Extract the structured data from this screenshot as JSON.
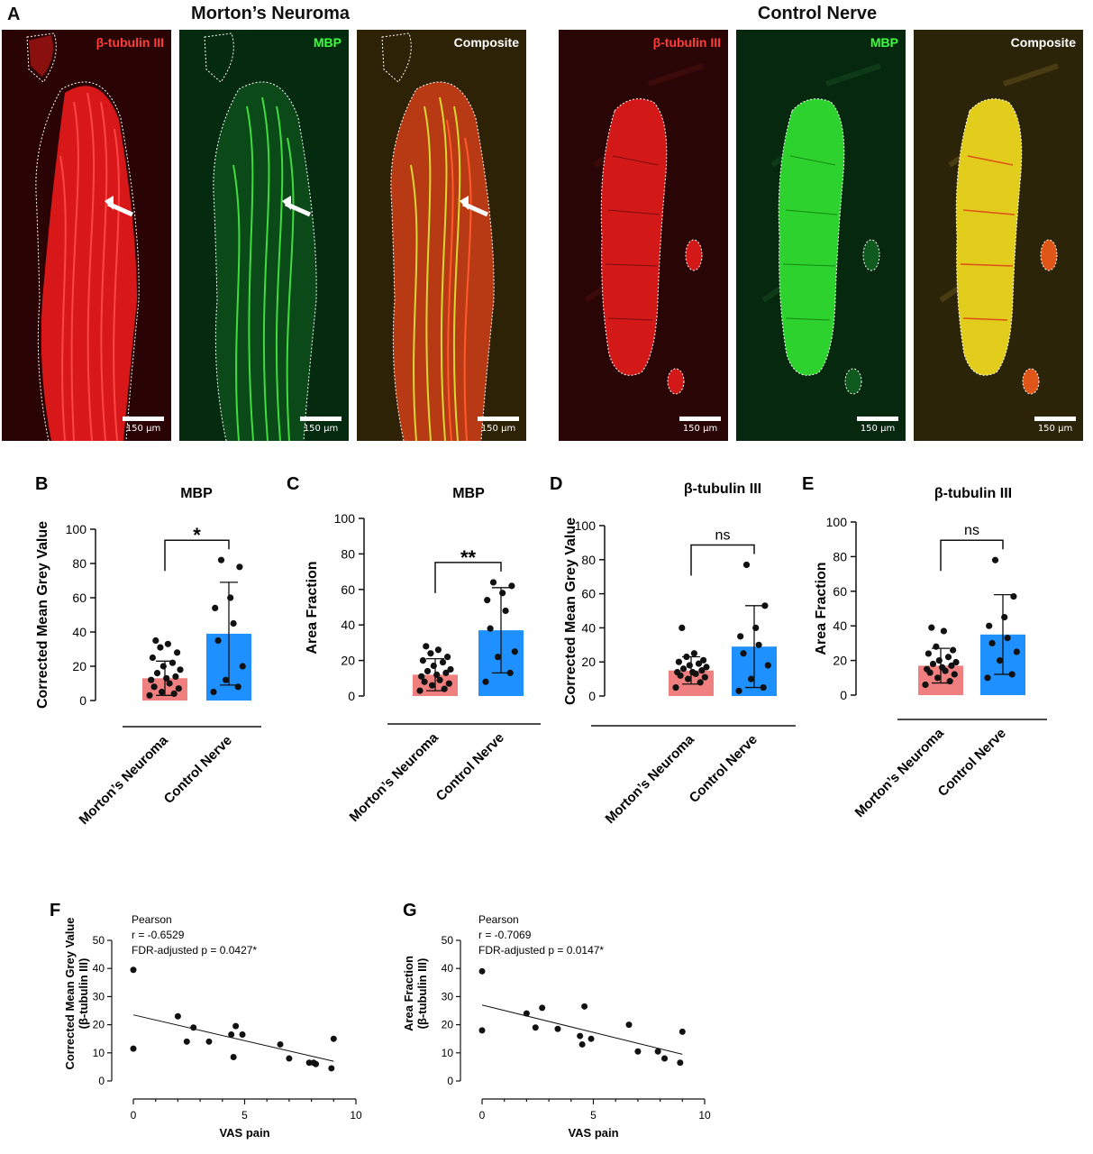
{
  "panel_a": {
    "letter": "A",
    "groups": [
      {
        "title": "Morton’s Neuroma"
      },
      {
        "title": "Control Nerve"
      }
    ],
    "images": [
      {
        "label": "β-tubulin III",
        "scale": "150 μm",
        "label_color": "#ff3b3b"
      },
      {
        "label": "MBP",
        "scale": "150 μm",
        "label_color": "#3cff3c"
      },
      {
        "label": "Composite",
        "scale": "150 μm",
        "label_color": "#ffffff"
      },
      {
        "label": "β-tubulin III",
        "scale": "150 μm",
        "label_color": "#ff3b3b"
      },
      {
        "label": "MBP",
        "scale": "150 μm",
        "label_color": "#3cff3c"
      },
      {
        "label": "Composite",
        "scale": "150 μm",
        "label_color": "#ffffff"
      }
    ]
  },
  "chart_data": [
    {
      "letter": "B",
      "type": "bar",
      "title": "MBP",
      "ylabel": "Corrected Mean Grey Value",
      "ylim": [
        0,
        100
      ],
      "yticks": [
        "0",
        "20",
        "40",
        "60",
        "80",
        "100"
      ],
      "categories": [
        "Morton’s Neuroma",
        "Control Nerve"
      ],
      "values": [
        13,
        39
      ],
      "sd": [
        10,
        30
      ],
      "colors": [
        "#f08080",
        "#1e90ff"
      ],
      "points": [
        [
          3,
          4,
          5,
          7,
          8,
          10,
          12,
          13,
          14,
          16,
          18,
          20,
          22,
          25,
          28,
          31,
          33,
          35
        ],
        [
          5,
          8,
          12,
          20,
          35,
          45,
          54,
          60,
          78,
          82
        ]
      ],
      "significance": "*"
    },
    {
      "letter": "C",
      "type": "bar",
      "title": "MBP",
      "ylabel": "Area Fraction",
      "ylim": [
        0,
        100
      ],
      "yticks": [
        "0",
        "20",
        "40",
        "60",
        "80",
        "100"
      ],
      "categories": [
        "Morton’s Neuroma",
        "Control Nerve"
      ],
      "values": [
        12,
        37
      ],
      "sd": [
        9,
        24
      ],
      "colors": [
        "#f08080",
        "#1e90ff"
      ],
      "points": [
        [
          3,
          4,
          6,
          7,
          8,
          9,
          11,
          12,
          13,
          14,
          15,
          17,
          19,
          20,
          22,
          24,
          26,
          28
        ],
        [
          8,
          13,
          22,
          25,
          38,
          48,
          54,
          58,
          62,
          64
        ]
      ],
      "significance": "**"
    },
    {
      "letter": "D",
      "type": "bar",
      "title": "β-tubulin III",
      "ylabel": "Corrected Mean Grey Value",
      "ylim": [
        0,
        100
      ],
      "yticks": [
        "0",
        "20",
        "40",
        "60",
        "80",
        "100"
      ],
      "categories": [
        "Morton’s Neuroma",
        "Control Nerve"
      ],
      "values": [
        15,
        29
      ],
      "sd": [
        8,
        24
      ],
      "colors": [
        "#f08080",
        "#1e90ff"
      ],
      "points": [
        [
          5,
          8,
          10,
          11,
          12,
          13,
          14,
          14,
          15,
          16,
          17,
          18,
          19,
          20,
          21,
          23,
          25,
          40
        ],
        [
          3,
          5,
          10,
          18,
          25,
          30,
          35,
          40,
          53,
          77
        ]
      ],
      "significance": "ns"
    },
    {
      "letter": "E",
      "type": "bar",
      "title": "β-tubulin III",
      "ylabel": "Area Fraction",
      "ylim": [
        0,
        100
      ],
      "yticks": [
        "0",
        "20",
        "40",
        "60",
        "80",
        "100"
      ],
      "categories": [
        "Morton’s Neuroma",
        "Control Nerve"
      ],
      "values": [
        17,
        35
      ],
      "sd": [
        10,
        23
      ],
      "colors": [
        "#f08080",
        "#1e90ff"
      ],
      "points": [
        [
          6,
          8,
          10,
          12,
          13,
          14,
          15,
          16,
          17,
          18,
          19,
          20,
          22,
          24,
          26,
          28,
          37,
          39
        ],
        [
          10,
          12,
          20,
          25,
          30,
          33,
          40,
          45,
          57,
          78
        ]
      ],
      "significance": "ns"
    },
    {
      "letter": "F",
      "type": "scatter",
      "ylabel": "Corrected Mean Grey Value",
      "ylabel2": "(β-tubulin III)",
      "xlabel": "VAS pain",
      "xlim": [
        0,
        10
      ],
      "ylim": [
        0,
        50
      ],
      "xticks": [
        "0",
        "5",
        "10"
      ],
      "yticks": [
        "0",
        "10",
        "20",
        "30",
        "40",
        "50"
      ],
      "annotation": [
        "Pearson",
        "r = -0.6529",
        "FDR-adjusted p = 0.0427*"
      ],
      "x": [
        0,
        0,
        2,
        2.4,
        2.7,
        3.4,
        4.4,
        4.5,
        4.6,
        4.9,
        6.6,
        7.0,
        7.9,
        8.1,
        8.2,
        8.9,
        9.0
      ],
      "y": [
        39.5,
        11.5,
        23,
        14,
        19,
        14,
        16.5,
        8.5,
        19.5,
        16.5,
        13,
        8,
        6.5,
        6.5,
        6,
        4.5,
        15
      ],
      "fit": [
        [
          0,
          23.5
        ],
        [
          9,
          7
        ]
      ]
    },
    {
      "letter": "G",
      "type": "scatter",
      "ylabel": "Area Fraction",
      "ylabel2": "(β-tubulin III)",
      "xlabel": "VAS pain",
      "xlim": [
        0,
        10
      ],
      "ylim": [
        0,
        50
      ],
      "xticks": [
        "0",
        "5",
        "10"
      ],
      "yticks": [
        "0",
        "10",
        "20",
        "30",
        "40",
        "50"
      ],
      "annotation": [
        "Pearson",
        "r = -0.7069",
        "FDR-adjusted p = 0.0147*"
      ],
      "x": [
        0,
        0,
        2,
        2.4,
        2.7,
        3.4,
        4.4,
        4.5,
        4.6,
        4.9,
        6.6,
        7.0,
        7.9,
        8.2,
        8.9,
        9.0
      ],
      "y": [
        39,
        18,
        24,
        19,
        26,
        18.5,
        16,
        13,
        26.5,
        15,
        20,
        10.5,
        10.5,
        8,
        6.5,
        17.5
      ],
      "fit": [
        [
          0,
          27
        ],
        [
          9,
          9.5
        ]
      ]
    }
  ]
}
